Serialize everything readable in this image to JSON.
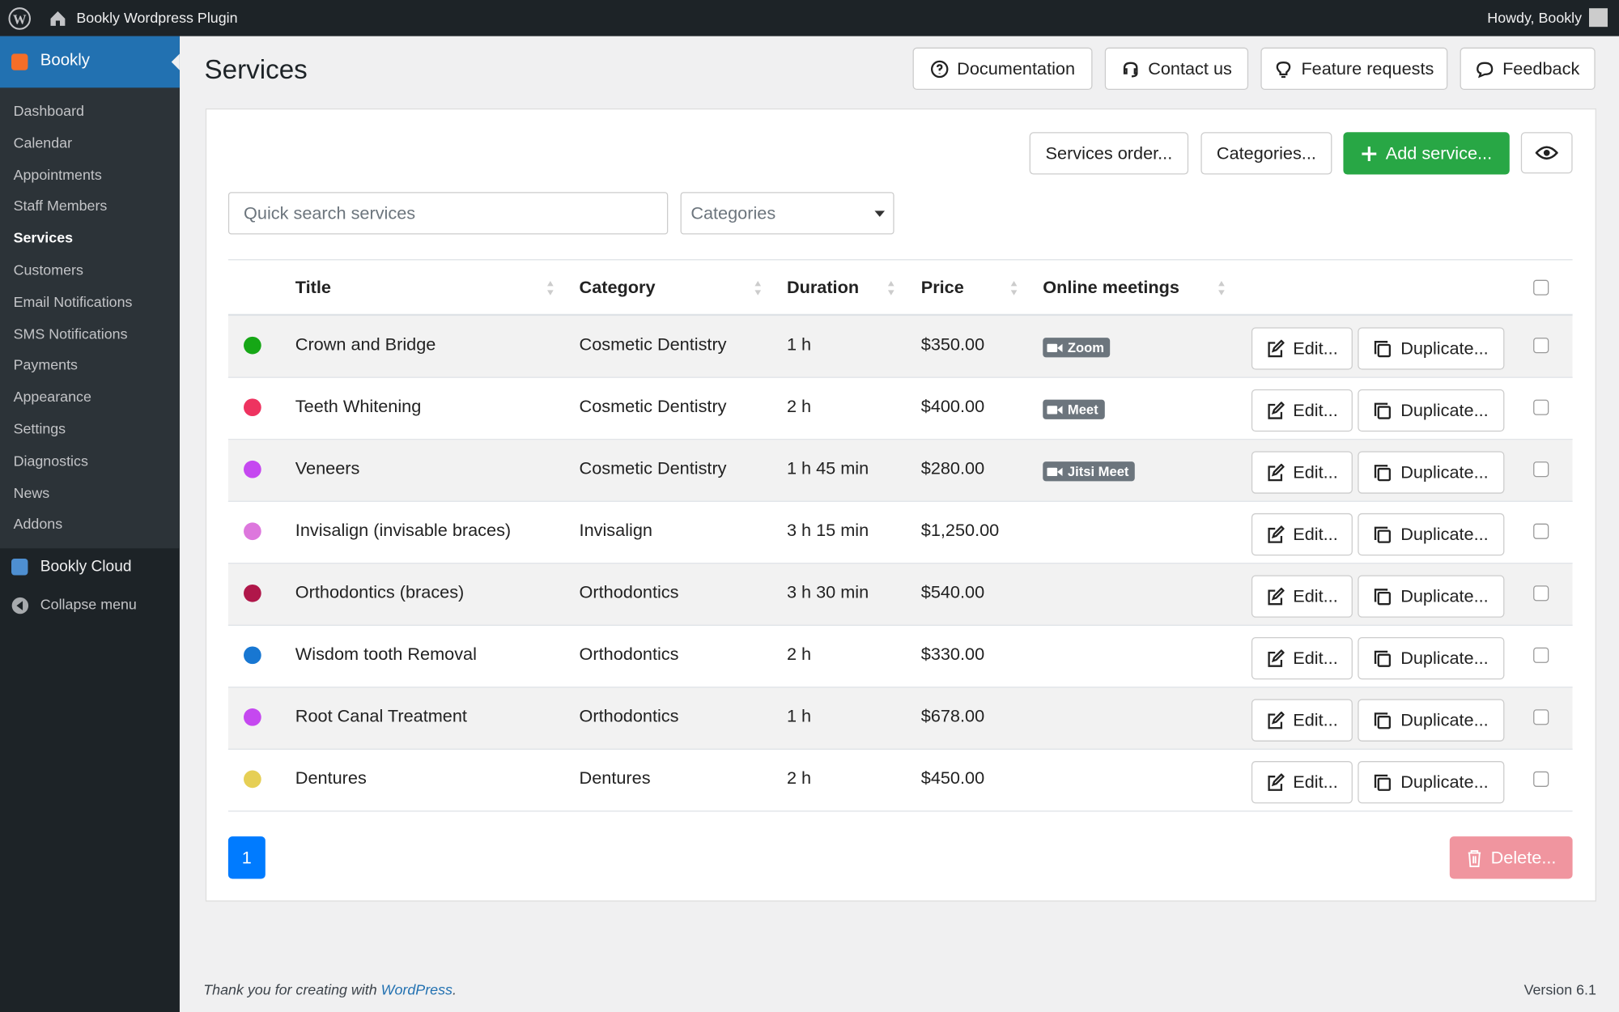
{
  "admin_bar": {
    "site_name": "Bookly Wordpress Plugin",
    "greeting": "Howdy, Bookly"
  },
  "sidebar": {
    "plugin": "Bookly",
    "menu": [
      "Dashboard",
      "Calendar",
      "Appointments",
      "Staff Members",
      "Services",
      "Customers",
      "Email Notifications",
      "SMS Notifications",
      "Payments",
      "Appearance",
      "Settings",
      "Diagnostics",
      "News",
      "Addons"
    ],
    "active": "Services",
    "cloud": "Bookly Cloud",
    "collapse": "Collapse menu"
  },
  "header": {
    "title": "Services",
    "buttons": [
      "Documentation",
      "Contact us",
      "Feature requests",
      "Feedback"
    ]
  },
  "toolbar": {
    "buttons": [
      "Services order...",
      "Categories...",
      "Add service..."
    ],
    "search_placeholder": "Quick search services",
    "category_filter": "Categories"
  },
  "table": {
    "columns": [
      "Title",
      "Category",
      "Duration",
      "Price",
      "Online meetings"
    ],
    "row_actions": [
      "Edit...",
      "Duplicate..."
    ],
    "rows": [
      {
        "color": "#16a716",
        "title": "Crown and Bridge",
        "category": "Cosmetic Dentistry",
        "duration": "1 h",
        "price": "$350.00",
        "meeting": "Zoom"
      },
      {
        "color": "#ee3360",
        "title": "Teeth Whitening",
        "category": "Cosmetic Dentistry",
        "duration": "2 h",
        "price": "$400.00",
        "meeting": "Meet"
      },
      {
        "color": "#c548f0",
        "title": "Veneers",
        "category": "Cosmetic Dentistry",
        "duration": "1 h 45 min",
        "price": "$280.00",
        "meeting": "Jitsi Meet"
      },
      {
        "color": "#dd77dd",
        "title": "Invisalign (invisable braces)",
        "category": "Invisalign",
        "duration": "3 h 15 min",
        "price": "$1,250.00",
        "meeting": null
      },
      {
        "color": "#b0174a",
        "title": "Orthodontics (braces)",
        "category": "Orthodontics",
        "duration": "3 h 30 min",
        "price": "$540.00",
        "meeting": null
      },
      {
        "color": "#1877d2",
        "title": "Wisdom tooth Removal",
        "category": "Orthodontics",
        "duration": "2 h",
        "price": "$330.00",
        "meeting": null
      },
      {
        "color": "#c548f0",
        "title": "Root Canal Treatment",
        "category": "Orthodontics",
        "duration": "1 h",
        "price": "$678.00",
        "meeting": null
      },
      {
        "color": "#e6cf55",
        "title": "Dentures",
        "category": "Dentures",
        "duration": "2 h",
        "price": "$450.00",
        "meeting": null
      }
    ]
  },
  "pagination": {
    "page": "1"
  },
  "delete_button": "Delete...",
  "footer": {
    "thanks": "Thank you for creating with ",
    "link": "WordPress",
    "end": ".",
    "version": "Version 6.1"
  }
}
